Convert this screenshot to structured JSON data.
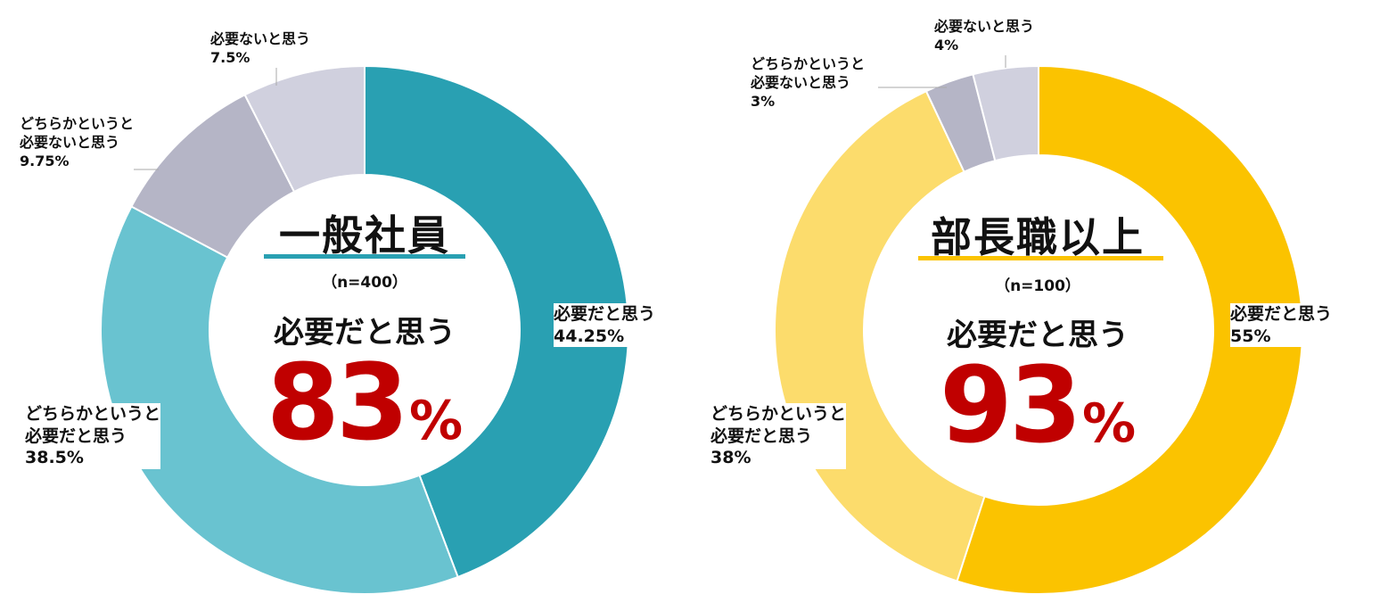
{
  "chart_data": [
    {
      "type": "pie",
      "title": "一般社員",
      "n_label": "（n=400）",
      "summary_label": "必要だと思う",
      "summary_value": "83",
      "summary_unit": "%",
      "colors": {
        "title_underline": "#29a0b2",
        "summary": "#c00000"
      },
      "slices": [
        {
          "label_lines": [
            "必要だと思う"
          ],
          "value": 44.25,
          "value_text": "44.25%",
          "color": "#29a0b2"
        },
        {
          "label_lines": [
            "どちらかというと",
            "必要だと思う"
          ],
          "value": 38.5,
          "value_text": "38.5%",
          "color": "#69c3d0"
        },
        {
          "label_lines": [
            "どちらかというと",
            "必要ないと思う"
          ],
          "value": 9.75,
          "value_text": "9.75%",
          "color": "#b5b5c6"
        },
        {
          "label_lines": [
            "必要ないと思う"
          ],
          "value": 7.5,
          "value_text": "7.5%",
          "color": "#d0d0de"
        }
      ]
    },
    {
      "type": "pie",
      "title": "部長職以上",
      "n_label": "（n=100）",
      "summary_label": "必要だと思う",
      "summary_value": "93",
      "summary_unit": "%",
      "colors": {
        "title_underline": "#fbc300",
        "summary": "#c00000"
      },
      "slices": [
        {
          "label_lines": [
            "必要だと思う"
          ],
          "value": 55,
          "value_text": "55%",
          "color": "#fbc300"
        },
        {
          "label_lines": [
            "どちらかというと",
            "必要だと思う"
          ],
          "value": 38,
          "value_text": "38%",
          "color": "#fcdc6c"
        },
        {
          "label_lines": [
            "どちらかというと",
            "必要ないと思う"
          ],
          "value": 3,
          "value_text": "3%",
          "color": "#b5b5c6"
        },
        {
          "label_lines": [
            "必要ないと思う"
          ],
          "value": 4,
          "value_text": "4%",
          "color": "#d0d0de"
        }
      ]
    }
  ]
}
